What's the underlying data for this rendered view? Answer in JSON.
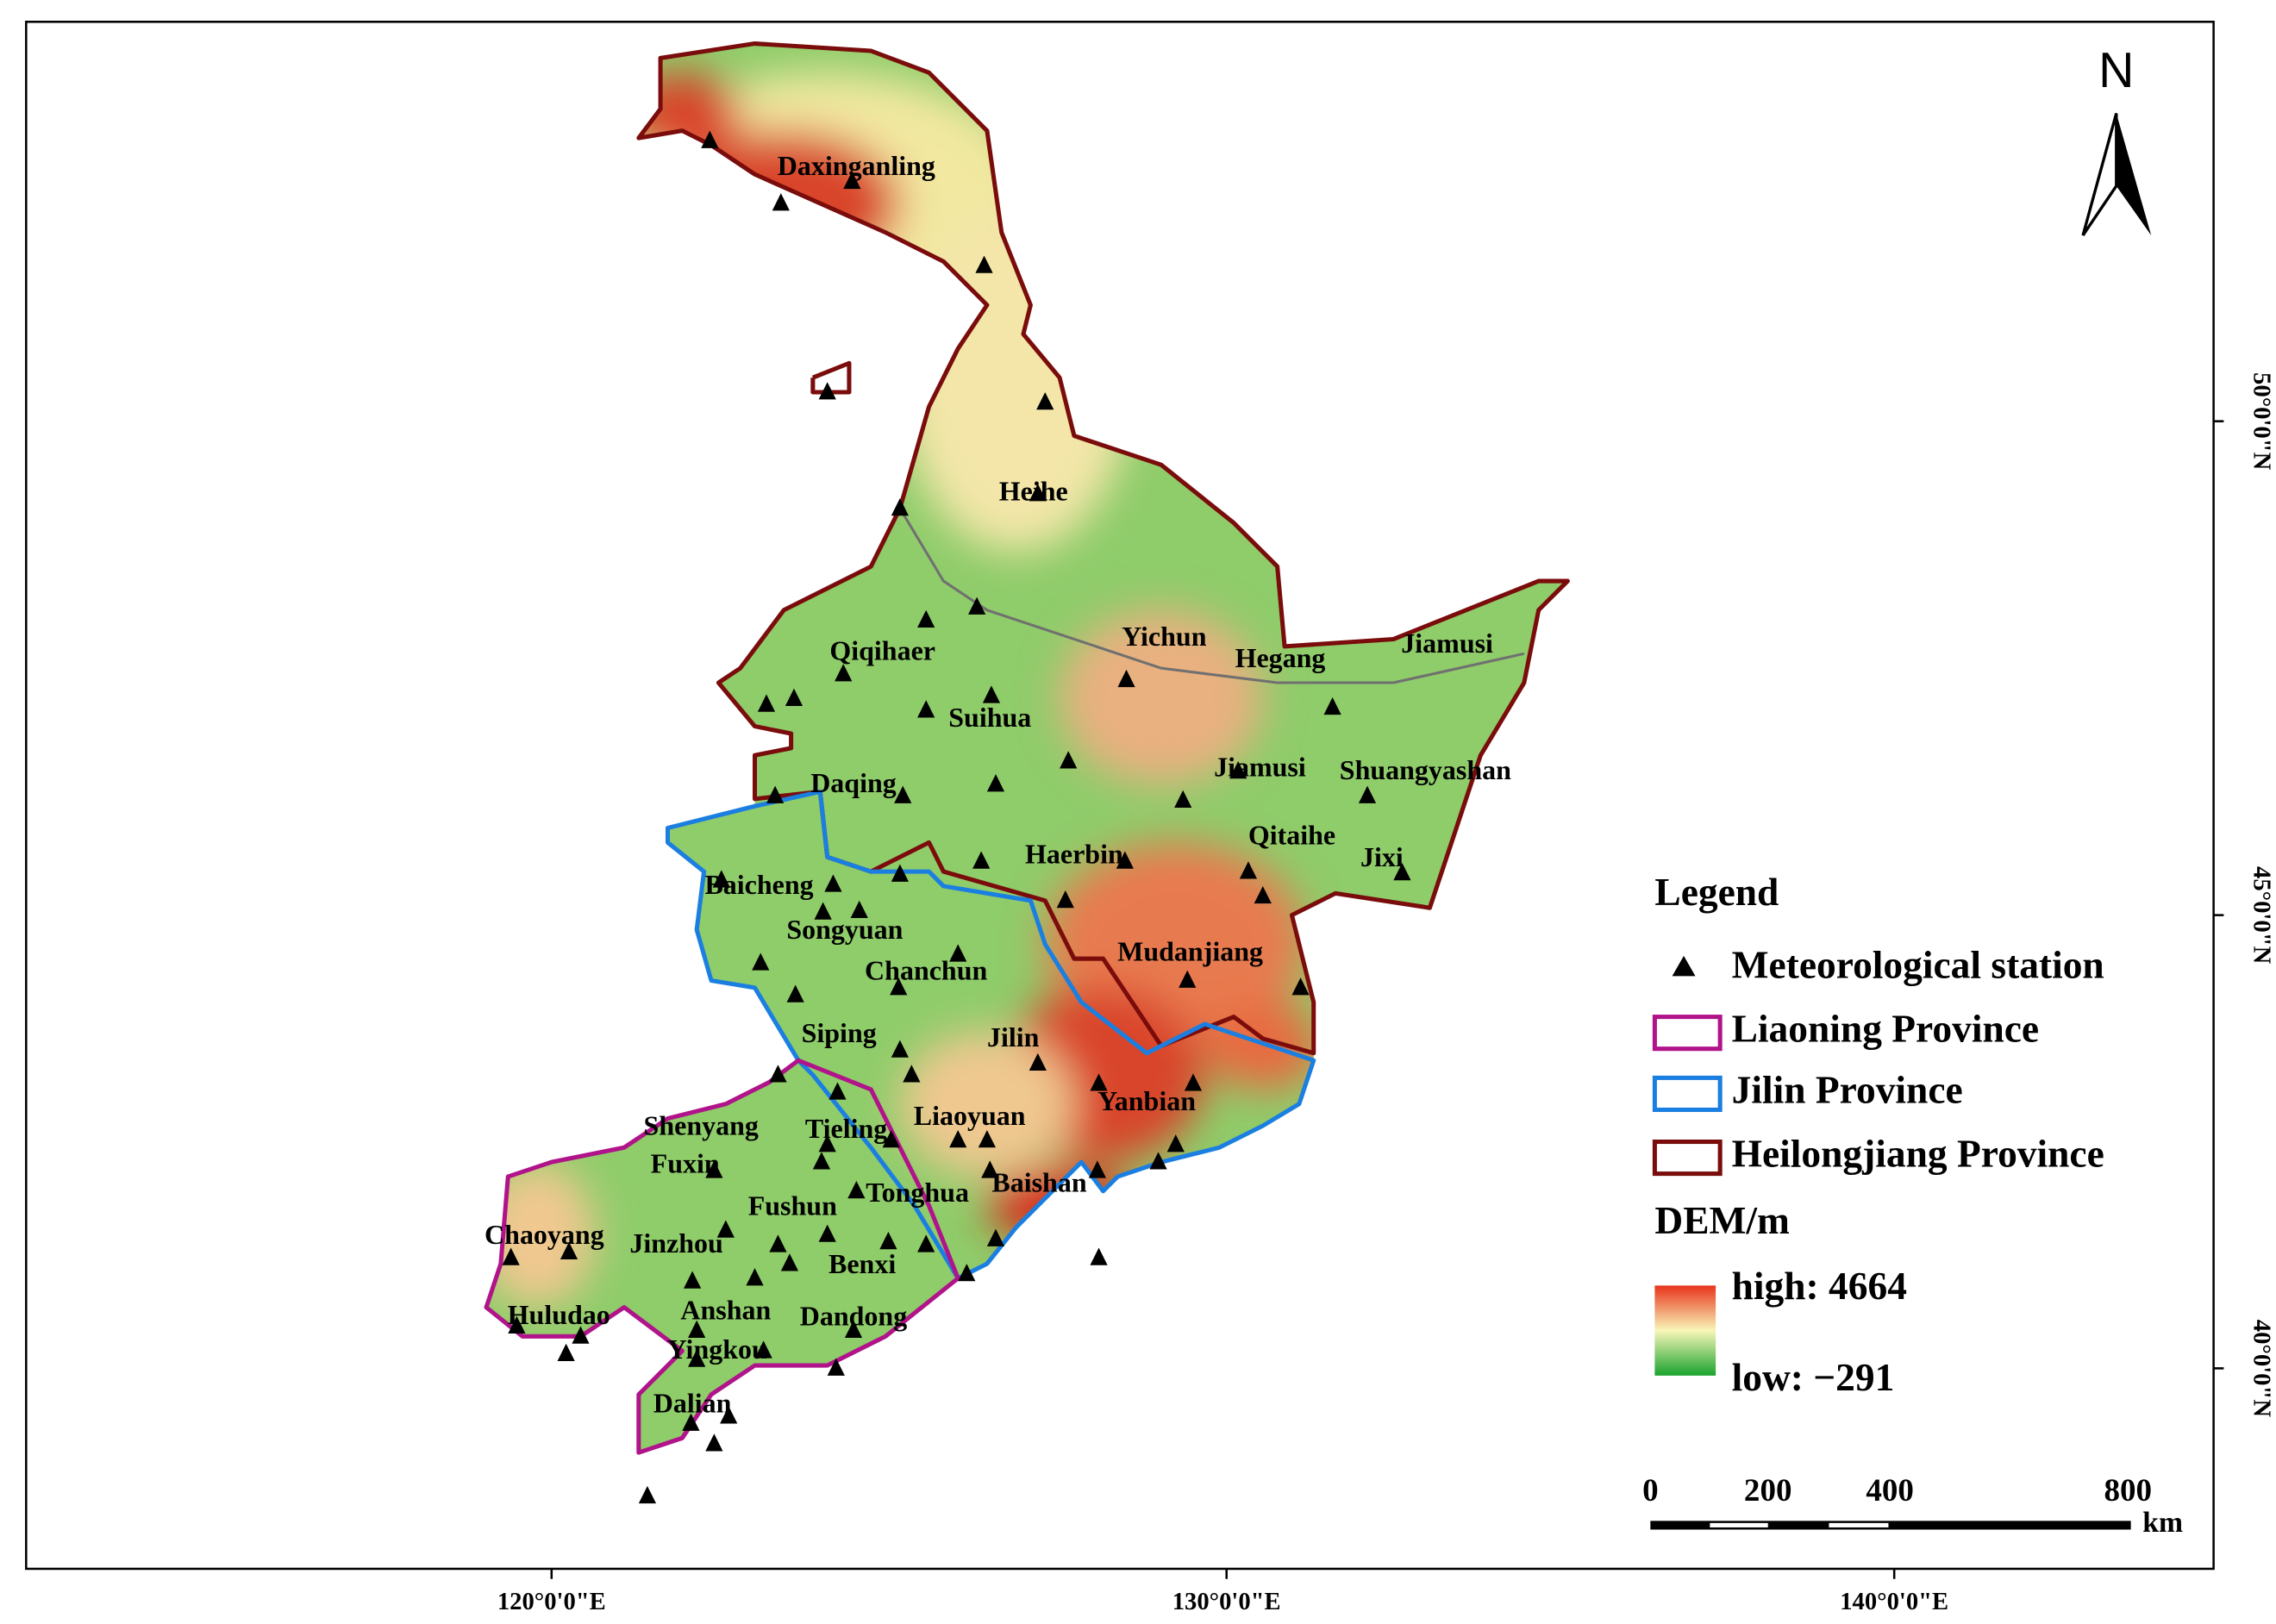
{
  "map": {
    "north_label": "N",
    "lat_labels": [
      "50°0'0\"N",
      "45°0'0\"N",
      "40°0'0\"N"
    ],
    "lon_labels": [
      "120°0'0\"E",
      "130°0'0\"E",
      "140°0'0\"E"
    ],
    "cities": [
      "Daxinganling",
      "Heihe",
      "Qiqihaer",
      "Yichun",
      "Hegang",
      "Jiamusi",
      "Suihua",
      "Daqing",
      "Jiamusi",
      "Shuangyashan",
      "Haerbin",
      "Qitaihe",
      "Jixi",
      "Baicheng",
      "Songyuan",
      "Chanchun",
      "Mudanjiang",
      "Siping",
      "Jilin",
      "Yanbian",
      "Shenyang",
      "Tieling",
      "Liaoyuan",
      "Fuxin",
      "Fushun",
      "Tonghua",
      "Baishan",
      "Chaoyang",
      "Jinzhou",
      "Benxi",
      "Huludao",
      "Anshan",
      "Dandong",
      "Yingkou",
      "Dalian"
    ],
    "legend": {
      "title": "Legend",
      "items": [
        "Meteorological station",
        "Liaoning Province",
        "Jilin Province",
        "Heilongjiang Province"
      ]
    },
    "dem": {
      "title": "DEM/m",
      "high": "high: 4664",
      "low": "low: −291"
    },
    "scale": {
      "labels": [
        "0",
        "200",
        "400",
        "800"
      ],
      "unit": "km"
    }
  }
}
